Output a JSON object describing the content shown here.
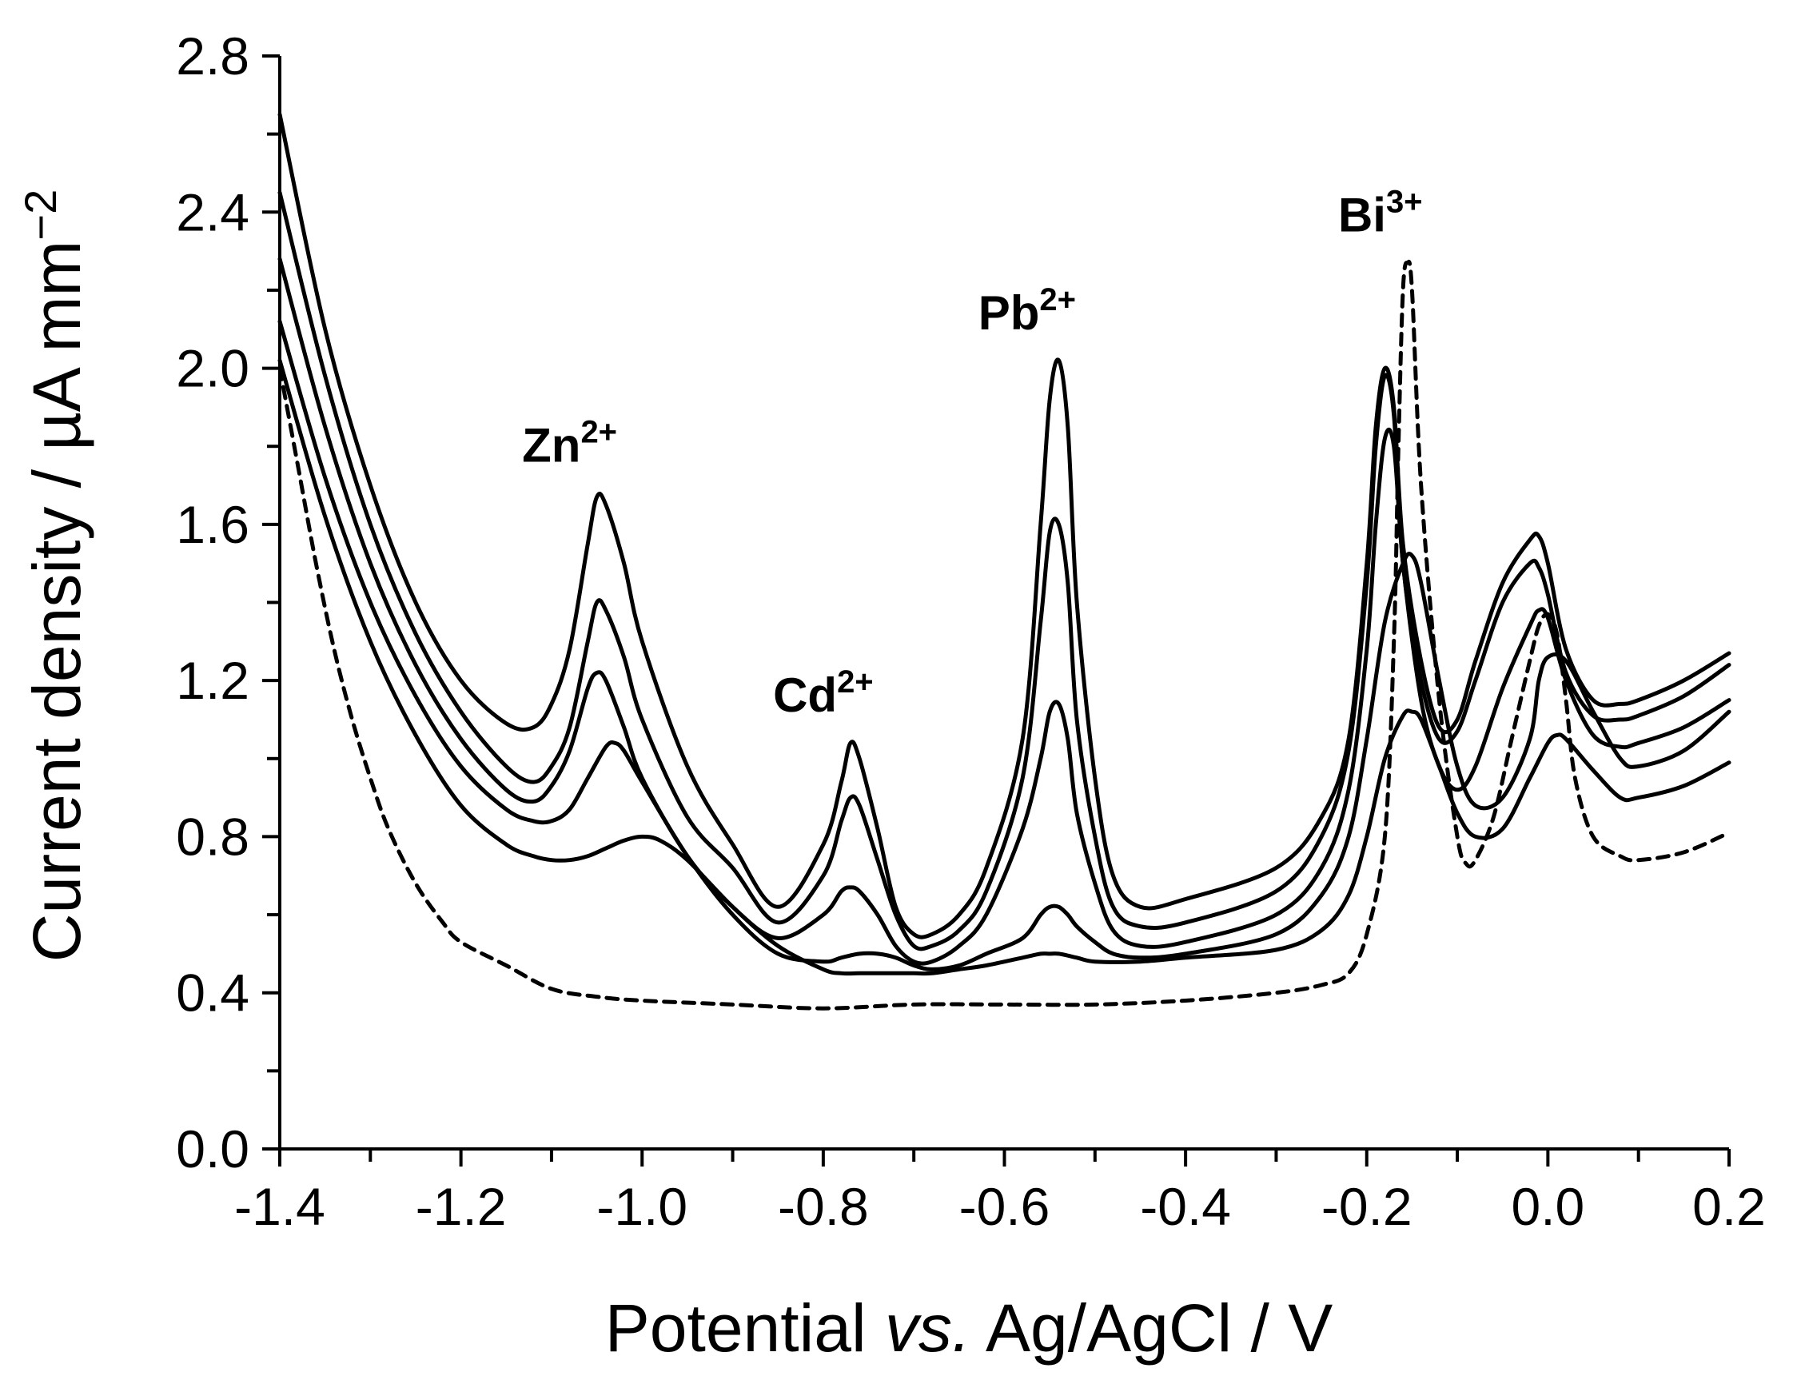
{
  "chart_data": {
    "type": "line",
    "title": "",
    "xlabel": {
      "pre": "Potential ",
      "italic": "vs.",
      "post": " Ag/AgCl / V"
    },
    "ylabel": {
      "main": "Current density / µA mm",
      "sup": "−2"
    },
    "xlim": [
      -1.4,
      0.2
    ],
    "ylim": [
      0.0,
      2.8
    ],
    "x_ticks": [
      -1.4,
      -1.2,
      -1.0,
      -0.8,
      -0.6,
      -0.4,
      -0.2,
      0.0,
      0.2
    ],
    "x_tick_labels": [
      "-1.4",
      "-1.2",
      "-1.0",
      "-0.8",
      "-0.6",
      "-0.4",
      "-0.2",
      "0.0",
      "0.2"
    ],
    "x_minor_step": 0.1,
    "y_ticks": [
      0.0,
      0.4,
      0.8,
      1.2,
      1.6,
      2.0,
      2.4,
      2.8
    ],
    "y_tick_labels": [
      "0.0",
      "0.4",
      "0.8",
      "1.2",
      "1.6",
      "2.0",
      "2.4",
      "2.8"
    ],
    "y_minor_step": 0.2,
    "grid": false,
    "annotations": [
      {
        "base": "Zn",
        "sup": "2+",
        "x": -1.08,
        "y": 1.76
      },
      {
        "base": "Cd",
        "sup": "2+",
        "x": -0.8,
        "y": 1.12
      },
      {
        "base": "Pb",
        "sup": "2+",
        "x": -0.575,
        "y": 2.1
      },
      {
        "base": "Bi",
        "sup": "3+",
        "x": -0.185,
        "y": 2.35
      }
    ],
    "series": [
      {
        "name": "curve-1",
        "style": "solid",
        "x": [
          -1.4,
          -1.35,
          -1.3,
          -1.25,
          -1.2,
          -1.15,
          -1.12,
          -1.1,
          -1.08,
          -1.06,
          -1.05,
          -1.04,
          -1.02,
          -1.0,
          -0.95,
          -0.9,
          -0.85,
          -0.8,
          -0.78,
          -0.77,
          -0.76,
          -0.74,
          -0.72,
          -0.7,
          -0.68,
          -0.65,
          -0.62,
          -0.58,
          -0.56,
          -0.55,
          -0.54,
          -0.53,
          -0.52,
          -0.5,
          -0.48,
          -0.45,
          -0.4,
          -0.3,
          -0.25,
          -0.22,
          -0.2,
          -0.19,
          -0.18,
          -0.17,
          -0.16,
          -0.14,
          -0.12,
          -0.1,
          -0.08,
          -0.05,
          -0.02,
          -0.01,
          0.0,
          0.02,
          0.05,
          0.08,
          0.1,
          0.15,
          0.2
        ],
        "y": [
          2.65,
          2.1,
          1.7,
          1.4,
          1.2,
          1.09,
          1.08,
          1.14,
          1.28,
          1.55,
          1.67,
          1.65,
          1.5,
          1.3,
          0.98,
          0.78,
          0.62,
          0.78,
          0.94,
          1.04,
          1.0,
          0.82,
          0.62,
          0.55,
          0.55,
          0.6,
          0.72,
          1.05,
          1.6,
          1.92,
          2.02,
          1.85,
          1.4,
          0.95,
          0.7,
          0.62,
          0.64,
          0.72,
          0.85,
          1.05,
          1.5,
          1.85,
          2.0,
          1.9,
          1.55,
          1.25,
          1.08,
          1.1,
          1.25,
          1.45,
          1.56,
          1.57,
          1.5,
          1.28,
          1.15,
          1.14,
          1.15,
          1.2,
          1.27
        ]
      },
      {
        "name": "curve-2",
        "style": "solid",
        "x": [
          -1.4,
          -1.35,
          -1.3,
          -1.25,
          -1.2,
          -1.15,
          -1.12,
          -1.1,
          -1.08,
          -1.06,
          -1.05,
          -1.04,
          -1.02,
          -1.0,
          -0.95,
          -0.9,
          -0.85,
          -0.8,
          -0.78,
          -0.77,
          -0.76,
          -0.74,
          -0.72,
          -0.7,
          -0.68,
          -0.65,
          -0.62,
          -0.58,
          -0.56,
          -0.55,
          -0.54,
          -0.53,
          -0.52,
          -0.5,
          -0.48,
          -0.45,
          -0.4,
          -0.3,
          -0.25,
          -0.22,
          -0.2,
          -0.19,
          -0.18,
          -0.17,
          -0.16,
          -0.14,
          -0.12,
          -0.1,
          -0.08,
          -0.05,
          -0.02,
          -0.01,
          0.0,
          0.02,
          0.05,
          0.08,
          0.1,
          0.15,
          0.2
        ],
        "y": [
          2.45,
          1.98,
          1.6,
          1.32,
          1.12,
          0.98,
          0.94,
          0.98,
          1.08,
          1.3,
          1.4,
          1.38,
          1.26,
          1.1,
          0.85,
          0.72,
          0.58,
          0.7,
          0.84,
          0.9,
          0.88,
          0.74,
          0.6,
          0.52,
          0.52,
          0.56,
          0.66,
          0.95,
          1.35,
          1.58,
          1.6,
          1.45,
          1.1,
          0.8,
          0.62,
          0.57,
          0.58,
          0.66,
          0.8,
          1.02,
          1.45,
          1.8,
          1.98,
          1.88,
          1.5,
          1.2,
          1.05,
          1.07,
          1.2,
          1.4,
          1.5,
          1.49,
          1.42,
          1.22,
          1.11,
          1.1,
          1.11,
          1.16,
          1.24
        ]
      },
      {
        "name": "curve-3",
        "style": "solid",
        "x": [
          -1.4,
          -1.35,
          -1.3,
          -1.25,
          -1.2,
          -1.15,
          -1.12,
          -1.1,
          -1.08,
          -1.06,
          -1.05,
          -1.04,
          -1.02,
          -1.0,
          -0.95,
          -0.9,
          -0.85,
          -0.8,
          -0.78,
          -0.77,
          -0.76,
          -0.74,
          -0.72,
          -0.7,
          -0.68,
          -0.65,
          -0.62,
          -0.58,
          -0.56,
          -0.55,
          -0.54,
          -0.53,
          -0.52,
          -0.5,
          -0.48,
          -0.45,
          -0.4,
          -0.3,
          -0.25,
          -0.22,
          -0.2,
          -0.19,
          -0.18,
          -0.17,
          -0.16,
          -0.14,
          -0.12,
          -0.1,
          -0.08,
          -0.05,
          -0.02,
          -0.01,
          0.0,
          0.02,
          0.05,
          0.08,
          0.1,
          0.15,
          0.2
        ],
        "y": [
          2.28,
          1.85,
          1.5,
          1.24,
          1.05,
          0.92,
          0.89,
          0.93,
          1.02,
          1.18,
          1.22,
          1.2,
          1.08,
          0.95,
          0.75,
          0.62,
          0.54,
          0.6,
          0.66,
          0.67,
          0.66,
          0.6,
          0.52,
          0.48,
          0.48,
          0.52,
          0.6,
          0.82,
          1.0,
          1.12,
          1.14,
          1.05,
          0.86,
          0.68,
          0.56,
          0.52,
          0.53,
          0.6,
          0.72,
          0.92,
          1.28,
          1.6,
          1.82,
          1.8,
          1.5,
          1.15,
          0.98,
          0.92,
          0.98,
          1.18,
          1.34,
          1.38,
          1.36,
          1.2,
          1.06,
          1.03,
          1.04,
          1.08,
          1.15
        ]
      },
      {
        "name": "curve-4",
        "style": "solid",
        "x": [
          -1.4,
          -1.35,
          -1.3,
          -1.25,
          -1.2,
          -1.15,
          -1.12,
          -1.1,
          -1.08,
          -1.06,
          -1.04,
          -1.03,
          -1.02,
          -1.0,
          -0.95,
          -0.9,
          -0.85,
          -0.8,
          -0.78,
          -0.76,
          -0.74,
          -0.72,
          -0.7,
          -0.68,
          -0.65,
          -0.62,
          -0.58,
          -0.56,
          -0.55,
          -0.54,
          -0.53,
          -0.52,
          -0.5,
          -0.48,
          -0.45,
          -0.4,
          -0.3,
          -0.25,
          -0.22,
          -0.2,
          -0.18,
          -0.16,
          -0.15,
          -0.14,
          -0.12,
          -0.1,
          -0.08,
          -0.05,
          -0.02,
          -0.01,
          0.0,
          0.02,
          0.05,
          0.08,
          0.1,
          0.15,
          0.2
        ],
        "y": [
          2.12,
          1.72,
          1.4,
          1.16,
          0.98,
          0.87,
          0.84,
          0.84,
          0.87,
          0.95,
          1.03,
          1.04,
          1.02,
          0.94,
          0.75,
          0.6,
          0.5,
          0.48,
          0.49,
          0.5,
          0.5,
          0.49,
          0.47,
          0.46,
          0.47,
          0.5,
          0.54,
          0.6,
          0.62,
          0.62,
          0.6,
          0.57,
          0.53,
          0.5,
          0.49,
          0.5,
          0.55,
          0.65,
          0.8,
          1.05,
          1.35,
          1.5,
          1.52,
          1.45,
          1.2,
          0.98,
          0.88,
          0.9,
          1.05,
          1.2,
          1.26,
          1.25,
          1.12,
          1.0,
          0.98,
          1.02,
          1.12
        ]
      },
      {
        "name": "curve-5",
        "style": "solid",
        "x": [
          -1.4,
          -1.35,
          -1.3,
          -1.25,
          -1.2,
          -1.15,
          -1.12,
          -1.1,
          -1.08,
          -1.06,
          -1.04,
          -1.02,
          -1.0,
          -0.98,
          -0.95,
          -0.9,
          -0.85,
          -0.8,
          -0.78,
          -0.76,
          -0.74,
          -0.72,
          -0.7,
          -0.68,
          -0.65,
          -0.62,
          -0.58,
          -0.56,
          -0.55,
          -0.54,
          -0.52,
          -0.5,
          -0.45,
          -0.4,
          -0.3,
          -0.25,
          -0.22,
          -0.2,
          -0.18,
          -0.16,
          -0.15,
          -0.14,
          -0.12,
          -0.1,
          -0.08,
          -0.05,
          -0.02,
          0.0,
          0.01,
          0.02,
          0.05,
          0.08,
          0.1,
          0.15,
          0.2
        ],
        "y": [
          2.02,
          1.62,
          1.3,
          1.06,
          0.88,
          0.78,
          0.75,
          0.74,
          0.74,
          0.75,
          0.77,
          0.79,
          0.8,
          0.79,
          0.74,
          0.62,
          0.52,
          0.46,
          0.45,
          0.45,
          0.45,
          0.45,
          0.45,
          0.45,
          0.46,
          0.47,
          0.49,
          0.5,
          0.5,
          0.5,
          0.49,
          0.48,
          0.48,
          0.49,
          0.51,
          0.56,
          0.65,
          0.8,
          1.0,
          1.11,
          1.12,
          1.1,
          0.98,
          0.86,
          0.8,
          0.82,
          0.95,
          1.04,
          1.06,
          1.05,
          0.97,
          0.9,
          0.9,
          0.93,
          0.99
        ]
      },
      {
        "name": "blank-dashed",
        "style": "dashed",
        "x": [
          -1.4,
          -1.38,
          -1.36,
          -1.34,
          -1.32,
          -1.3,
          -1.28,
          -1.25,
          -1.22,
          -1.2,
          -1.15,
          -1.1,
          -1.05,
          -1.0,
          -0.9,
          -0.8,
          -0.7,
          -0.6,
          -0.5,
          -0.4,
          -0.3,
          -0.25,
          -0.22,
          -0.2,
          -0.18,
          -0.17,
          -0.165,
          -0.16,
          -0.155,
          -0.15,
          -0.14,
          -0.12,
          -0.1,
          -0.09,
          -0.08,
          -0.06,
          -0.04,
          -0.02,
          -0.01,
          0.0,
          0.01,
          0.02,
          0.03,
          0.05,
          0.08,
          0.1,
          0.15,
          0.2
        ],
        "y": [
          2.0,
          1.75,
          1.5,
          1.28,
          1.1,
          0.95,
          0.82,
          0.68,
          0.58,
          0.53,
          0.47,
          0.41,
          0.39,
          0.38,
          0.37,
          0.36,
          0.37,
          0.37,
          0.37,
          0.38,
          0.4,
          0.42,
          0.45,
          0.55,
          0.8,
          1.3,
          1.8,
          2.2,
          2.27,
          2.2,
          1.7,
          1.15,
          0.8,
          0.73,
          0.74,
          0.85,
          1.05,
          1.25,
          1.34,
          1.37,
          1.32,
          1.15,
          0.95,
          0.8,
          0.75,
          0.74,
          0.76,
          0.81
        ]
      }
    ]
  }
}
